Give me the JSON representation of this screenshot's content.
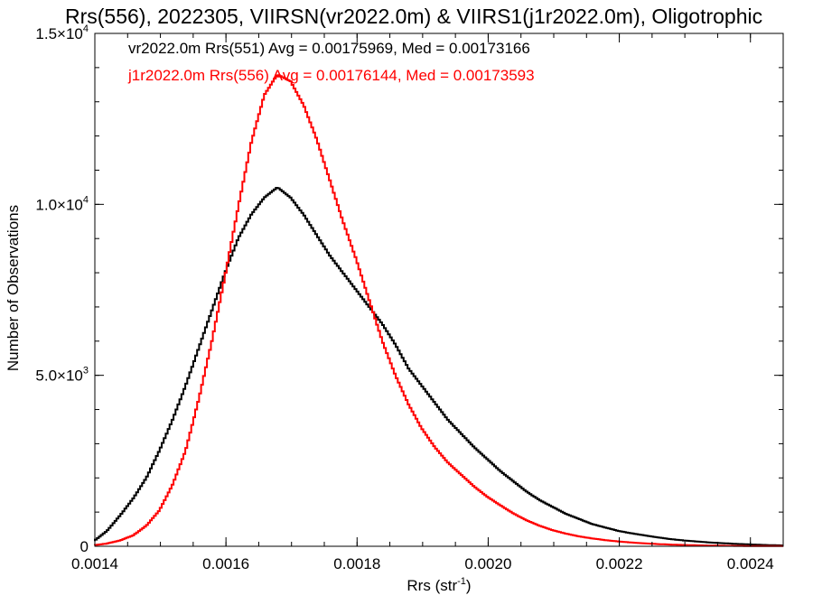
{
  "chart_data": {
    "type": "line",
    "title": "Rrs(556), 2022305, VIIRSN(vr2022.0m) & VIIRS1(j1r2022.0m), Oligotrophic",
    "xlabel": "Rrs (str",
    "xlabel_sup": "-1",
    "xlabel_close": ")",
    "ylabel": "Number of Observations",
    "xlim": [
      0.0014,
      0.00245
    ],
    "ylim": [
      0,
      15000
    ],
    "x_ticks": [
      0.0014,
      0.0016,
      0.0018,
      0.002,
      0.0022,
      0.0024
    ],
    "x_tick_labels": [
      "0.0014",
      "0.0016",
      "0.0018",
      "0.0020",
      "0.0022",
      "0.0024"
    ],
    "y_ticks": [
      {
        "value": 0,
        "mant": "0",
        "exp": ""
      },
      {
        "value": 5000,
        "mant": "5.0×10",
        "exp": "3"
      },
      {
        "value": 10000,
        "mant": "1.0×10",
        "exp": "4"
      },
      {
        "value": 15000,
        "mant": "1.5×10",
        "exp": "4"
      }
    ],
    "x_minor_step": 5e-05,
    "y_minor_step": 1000,
    "grid": false,
    "legend": "top-left",
    "series": [
      {
        "name": "vr2022.0m Rrs(551) Avg = 0.00175969, Med = 0.00173166",
        "color": "#000000",
        "x": [
          0.0014,
          0.00142,
          0.00144,
          0.00146,
          0.00148,
          0.0015,
          0.00152,
          0.00154,
          0.00156,
          0.00158,
          0.0016,
          0.00162,
          0.00164,
          0.00166,
          0.00168,
          0.0017,
          0.00172,
          0.00174,
          0.00176,
          0.00178,
          0.0018,
          0.00182,
          0.00184,
          0.00186,
          0.00188,
          0.0019,
          0.00192,
          0.00194,
          0.00196,
          0.00198,
          0.002,
          0.00202,
          0.00204,
          0.00206,
          0.00208,
          0.0021,
          0.00212,
          0.00214,
          0.00216,
          0.00218,
          0.0022,
          0.00222,
          0.00224,
          0.00226,
          0.00228,
          0.0023,
          0.00232,
          0.00234,
          0.00236,
          0.00238,
          0.0024,
          0.00242,
          0.00245
        ],
        "y": [
          150,
          450,
          900,
          1400,
          2000,
          2800,
          3700,
          4700,
          5800,
          6900,
          8000,
          9000,
          9700,
          10200,
          10500,
          10200,
          9700,
          9100,
          8500,
          8000,
          7500,
          7000,
          6500,
          5900,
          5200,
          4700,
          4200,
          3700,
          3300,
          2900,
          2550,
          2200,
          1900,
          1600,
          1350,
          1150,
          950,
          800,
          650,
          550,
          450,
          380,
          320,
          260,
          210,
          170,
          140,
          110,
          90,
          70,
          55,
          40,
          25
        ]
      },
      {
        "name": "j1r2022.0m Rrs(556) Avg = 0.00176144, Med = 0.00173593",
        "color": "#ff0000",
        "x": [
          0.0014,
          0.00142,
          0.00144,
          0.00146,
          0.00148,
          0.0015,
          0.00152,
          0.00154,
          0.00156,
          0.00158,
          0.0016,
          0.00162,
          0.00164,
          0.00166,
          0.00168,
          0.0017,
          0.00172,
          0.00174,
          0.00176,
          0.00178,
          0.0018,
          0.00182,
          0.00184,
          0.00186,
          0.00188,
          0.0019,
          0.00192,
          0.00194,
          0.00196,
          0.00198,
          0.002,
          0.00202,
          0.00204,
          0.00206,
          0.00208,
          0.0021,
          0.00212,
          0.00214,
          0.00216,
          0.00218,
          0.0022,
          0.00222,
          0.00224,
          0.00226,
          0.00228,
          0.0023,
          0.00232,
          0.00234,
          0.00236,
          0.00238,
          0.0024,
          0.00242,
          0.00245
        ],
        "y": [
          30,
          80,
          170,
          320,
          600,
          1050,
          1800,
          2800,
          4300,
          6000,
          7900,
          9900,
          11800,
          13200,
          13800,
          13600,
          12900,
          11900,
          10700,
          9500,
          8400,
          7200,
          6000,
          5000,
          4150,
          3450,
          2900,
          2450,
          2100,
          1750,
          1450,
          1200,
          960,
          760,
          600,
          470,
          370,
          290,
          230,
          180,
          140,
          110,
          85,
          65,
          50,
          38,
          28,
          20,
          15,
          11,
          8,
          6,
          4
        ]
      }
    ]
  }
}
